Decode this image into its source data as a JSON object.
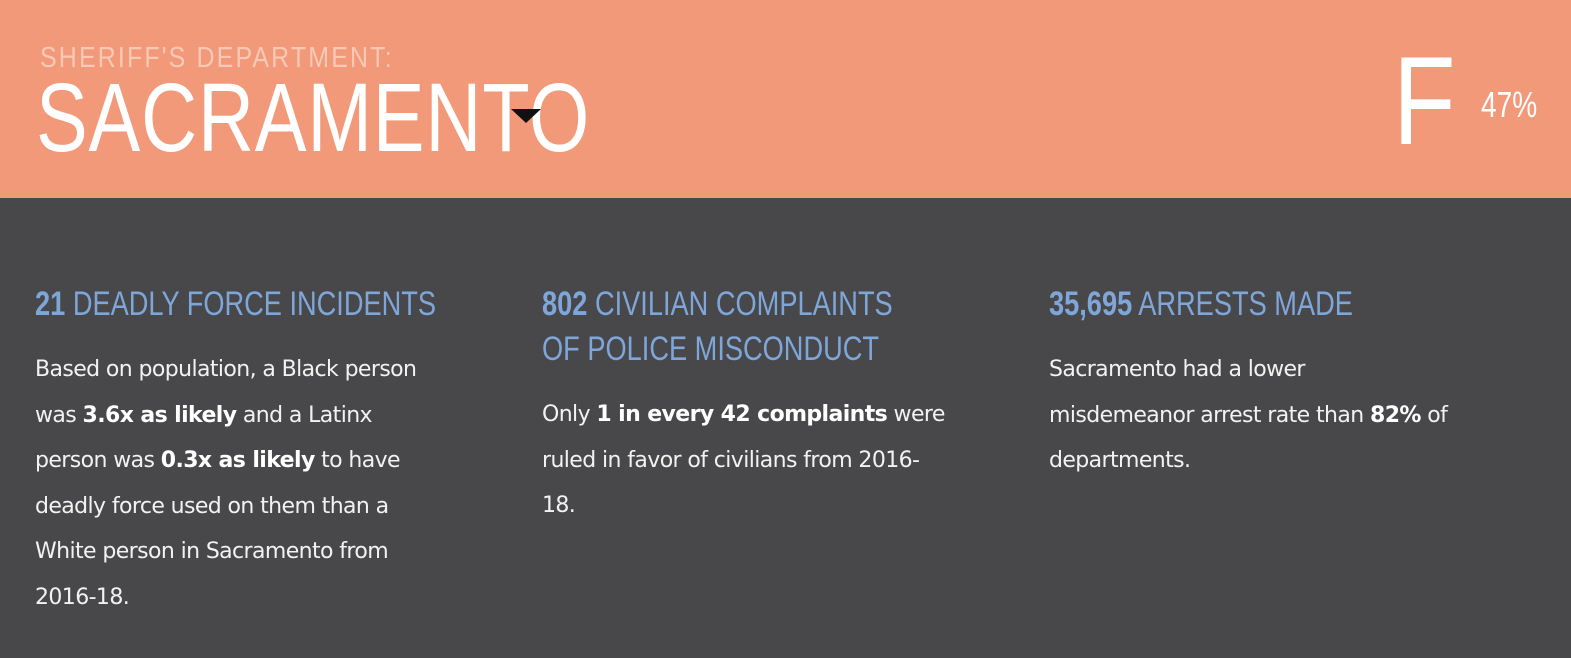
{
  "header": {
    "dept_label": "SHERIFF'S DEPARTMENT:",
    "dept_name": "SACRAMENTO",
    "grade": "F",
    "score": "47%",
    "background_color": "#f2997a"
  },
  "stats": [
    {
      "heading_number": "21",
      "heading_text": " DEADLY FORCE INCIDENTS",
      "body": [
        {
          "t": "Based on population, a Black person was "
        },
        {
          "t": "3.6x as likely",
          "b": true
        },
        {
          "t": " and a Latinx person was "
        },
        {
          "t": "0.3x as likely",
          "b": true
        },
        {
          "t": " to have deadly force used on them than a White person in Sacramento from 2016-18."
        }
      ]
    },
    {
      "heading_number": "802",
      "heading_text": " CIVILIAN COMPLAINTS OF POLICE MISCONDUCT",
      "body": [
        {
          "t": "Only "
        },
        {
          "t": "1 in every 42 complaints",
          "b": true
        },
        {
          "t": " were ruled in favor of civilians from 2016-18."
        }
      ]
    },
    {
      "heading_number": "35,695",
      "heading_text": " ARRESTS MADE",
      "body": [
        {
          "t": "Sacramento had a lower misdemeanor arrest rate than "
        },
        {
          "t": "82%",
          "b": true
        },
        {
          "t": " of departments."
        }
      ]
    }
  ],
  "colors": {
    "heading_accent": "#7ea6d9",
    "panel_background": "#48484a"
  }
}
